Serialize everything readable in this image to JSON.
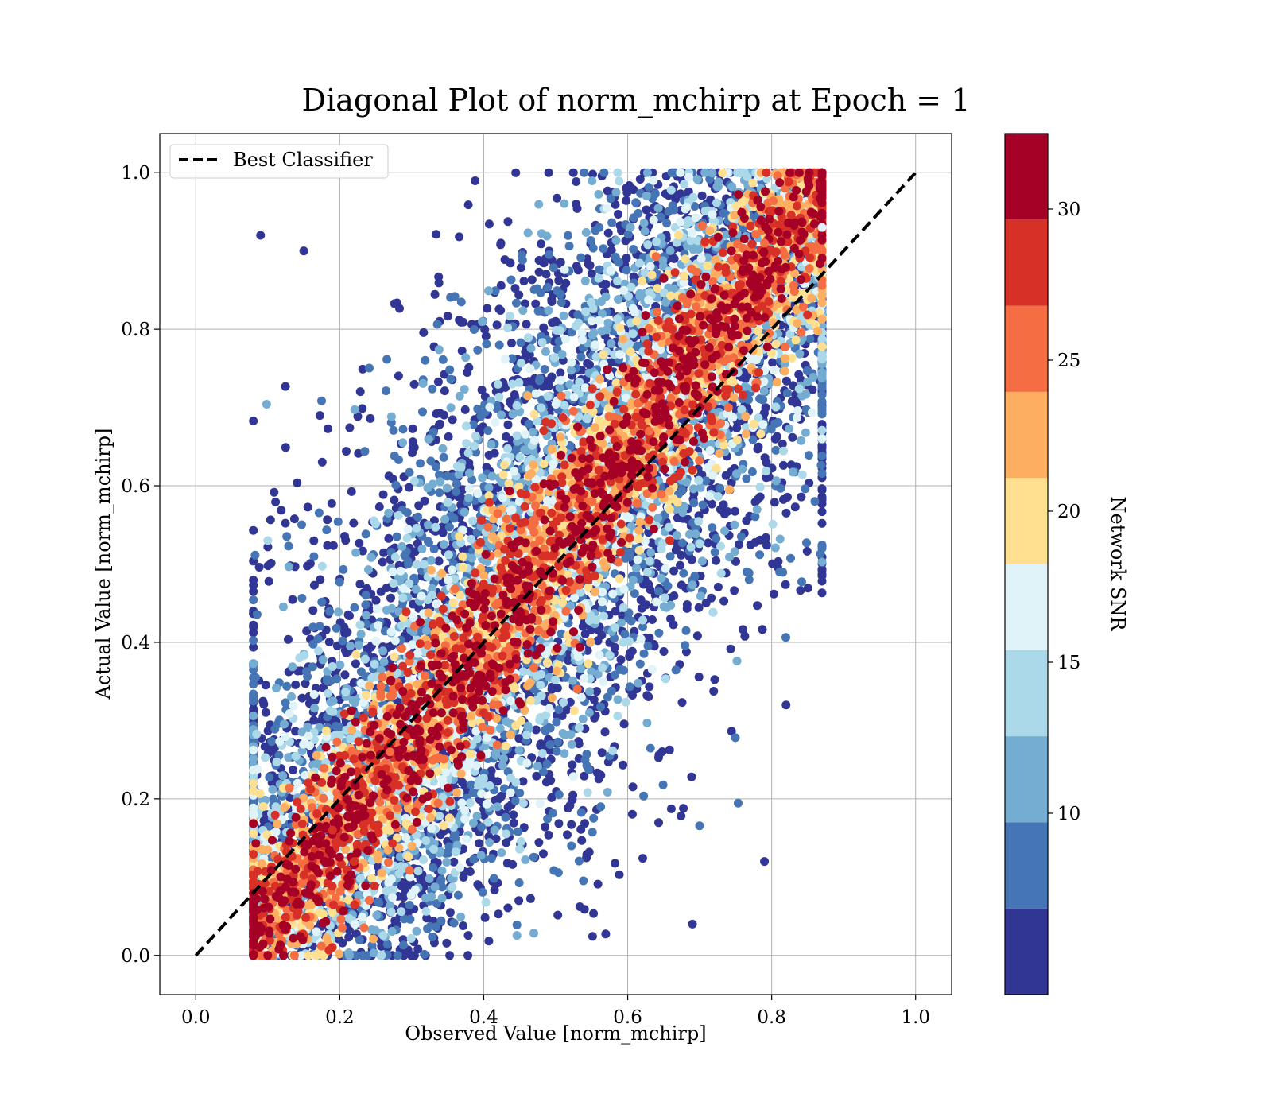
{
  "chart_data": {
    "type": "scatter",
    "title": "Diagonal Plot of norm_mchirp at Epoch = 1",
    "xlabel": "Observed Value [norm_mchirp]",
    "ylabel": "Actual Value [norm_mchirp]",
    "xlim": [
      -0.05,
      1.05
    ],
    "ylim": [
      -0.05,
      1.05
    ],
    "xticks": [
      "0.0",
      "0.2",
      "0.4",
      "0.6",
      "0.8",
      "1.0"
    ],
    "yticks": [
      "0.0",
      "0.2",
      "0.4",
      "0.6",
      "0.8",
      "1.0"
    ],
    "grid": true,
    "legend": {
      "placement": "upper-left",
      "entries": [
        {
          "name": "Best Classifier",
          "style": "dashed black line"
        }
      ]
    },
    "reference_line": {
      "x": [
        0.0,
        1.0
      ],
      "y": [
        0.0,
        1.0
      ],
      "color": "#000000",
      "style": "dashed"
    },
    "colorbar": {
      "label": "Network SNR",
      "cmap": "RdYlBu_r",
      "range": [
        4.0,
        32.5
      ],
      "ticks": [
        "10",
        "15",
        "20",
        "25",
        "30"
      ],
      "bins": [
        {
          "low": 4.0,
          "high": 6.85,
          "color": "#313695"
        },
        {
          "low": 6.85,
          "high": 9.7,
          "color": "#4575b4"
        },
        {
          "low": 9.7,
          "high": 12.55,
          "color": "#74add1"
        },
        {
          "low": 12.55,
          "high": 15.4,
          "color": "#abd9e9"
        },
        {
          "low": 15.4,
          "high": 18.25,
          "color": "#e0f3f8"
        },
        {
          "low": 18.25,
          "high": 21.1,
          "color": "#fee090"
        },
        {
          "low": 21.1,
          "high": 23.95,
          "color": "#fdae61"
        },
        {
          "low": 23.95,
          "high": 26.8,
          "color": "#f46d43"
        },
        {
          "low": 26.8,
          "high": 29.65,
          "color": "#d73027"
        },
        {
          "low": 29.65,
          "high": 32.5,
          "color": "#a50026"
        }
      ]
    },
    "points": [
      {
        "x": 0.31,
        "y": 0.25,
        "snr": 31.5
      },
      {
        "x": 0.45,
        "y": 0.53,
        "snr": 31.5
      },
      {
        "x": 0.39,
        "y": 0.46,
        "snr": 31.0
      },
      {
        "x": 0.55,
        "y": 0.52,
        "snr": 31.0
      },
      {
        "x": 0.7,
        "y": 0.7,
        "snr": 30.5
      },
      {
        "x": 0.56,
        "y": 0.62,
        "snr": 28.5
      },
      {
        "x": 0.69,
        "y": 0.62,
        "snr": 28.5
      },
      {
        "x": 0.4,
        "y": 0.31,
        "snr": 28.0
      },
      {
        "x": 0.35,
        "y": 0.3,
        "snr": 28.0
      },
      {
        "x": 0.19,
        "y": 0.16,
        "snr": 28.0
      },
      {
        "x": 0.22,
        "y": 0.12,
        "snr": 28.0
      },
      {
        "x": 0.64,
        "y": 0.79,
        "snr": 28.0
      },
      {
        "x": 0.74,
        "y": 0.7,
        "snr": 26.0
      },
      {
        "x": 0.79,
        "y": 0.91,
        "snr": 26.0
      },
      {
        "x": 0.63,
        "y": 0.67,
        "snr": 26.0
      },
      {
        "x": 0.42,
        "y": 0.45,
        "snr": 26.0
      },
      {
        "x": 0.27,
        "y": 0.26,
        "snr": 26.0
      },
      {
        "x": 0.53,
        "y": 0.34,
        "snr": 26.0
      },
      {
        "x": 0.09,
        "y": 0.92,
        "snr": 5.0
      },
      {
        "x": 0.15,
        "y": 0.9,
        "snr": 5.0
      },
      {
        "x": 0.82,
        "y": 0.32,
        "snr": 5.0
      },
      {
        "x": 0.79,
        "y": 0.12,
        "snr": 5.0
      },
      {
        "x": 0.69,
        "y": 0.04,
        "snr": 5.0
      },
      {
        "x": 0.1,
        "y": 0.53,
        "snr": 14.0
      },
      {
        "x": 0.86,
        "y": 0.58,
        "snr": 8.0
      },
      {
        "x": 0.87,
        "y": 0.66,
        "snr": 16.0
      },
      {
        "x": 0.87,
        "y": 0.93,
        "snr": 17.0
      }
    ]
  }
}
